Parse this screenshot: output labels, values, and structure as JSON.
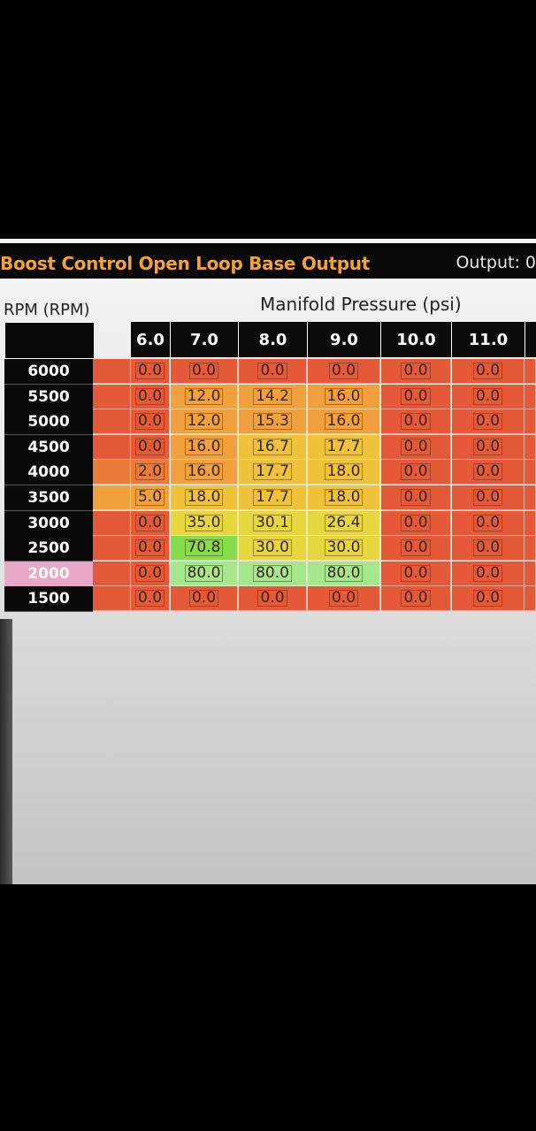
{
  "window": {
    "title": "Boost Control Open Loop Base Output",
    "output_label": "Output: 0"
  },
  "table": {
    "x_axis_title": "Manifold Pressure (psi)",
    "y_axis_title": "RPM (RPM)",
    "columns": [
      "6.0",
      "7.0",
      "8.0",
      "9.0",
      "10.0",
      "11.0"
    ],
    "highlighted_row": "2000",
    "rows": [
      {
        "rpm": "6000",
        "values": [
          "0.0",
          "0.0",
          "0.0",
          "0.0",
          "0.0",
          "0.0"
        ]
      },
      {
        "rpm": "5500",
        "values": [
          "0.0",
          "12.0",
          "14.2",
          "16.0",
          "0.0",
          "0.0"
        ]
      },
      {
        "rpm": "5000",
        "values": [
          "0.0",
          "12.0",
          "15.3",
          "16.0",
          "0.0",
          "0.0"
        ]
      },
      {
        "rpm": "4500",
        "values": [
          "0.0",
          "16.0",
          "16.7",
          "17.7",
          "0.0",
          "0.0"
        ]
      },
      {
        "rpm": "4000",
        "values": [
          "2.0",
          "16.0",
          "17.7",
          "18.0",
          "0.0",
          "0.0"
        ]
      },
      {
        "rpm": "3500",
        "values": [
          "5.0",
          "18.0",
          "17.7",
          "18.0",
          "0.0",
          "0.0"
        ]
      },
      {
        "rpm": "3000",
        "values": [
          "0.0",
          "35.0",
          "30.1",
          "26.4",
          "0.0",
          "0.0"
        ]
      },
      {
        "rpm": "2500",
        "values": [
          "0.0",
          "70.8",
          "30.0",
          "30.0",
          "0.0",
          "0.0"
        ]
      },
      {
        "rpm": "2000",
        "values": [
          "0.0",
          "80.0",
          "80.0",
          "80.0",
          "0.0",
          "0.0"
        ]
      },
      {
        "rpm": "1500",
        "values": [
          "0.0",
          "0.0",
          "0.0",
          "0.0",
          "0.0",
          "0.0"
        ]
      }
    ]
  },
  "colors": {
    "title": "#f2a23b",
    "header_bg": "#0b0b0b",
    "highlight_row": "#e8a9c6",
    "cell_0": "#e45a38",
    "cell_low": "#ea7a3a",
    "cell_mid": "#f0a03c",
    "cell_high": "#eec23a",
    "cell_yellow": "#e6d640",
    "cell_green": "#86dc4a",
    "cell_ltgreen": "#a6e68c"
  }
}
